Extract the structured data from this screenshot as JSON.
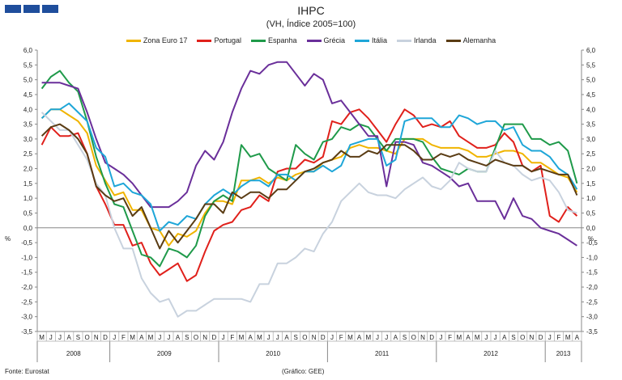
{
  "header": {
    "title": "IHPC",
    "subtitle": "(VH, Índice 2005=100)",
    "logo_icon": "gee-logo-blocks"
  },
  "footer": {
    "source": "Fonte: Eurostat",
    "credit": "(Gráfico: GEE)"
  },
  "chart_data": {
    "type": "line",
    "title": "IHPC",
    "subtitle": "(VH, Índice 2005=100)",
    "ylabel_left": "%",
    "ylabel_right": "%",
    "ylim": [
      -3.5,
      6.0
    ],
    "ytick_step": 0.5,
    "ytick_labels": [
      "6,0",
      "5,5",
      "5,0",
      "4,5",
      "4,0",
      "3,5",
      "3,0",
      "2,5",
      "2,0",
      "1,5",
      "1,0",
      "0,5",
      "0,0",
      "-0,5",
      "-1,0",
      "-1,5",
      "-2,0",
      "-2,5",
      "-3,0",
      "-3,5"
    ],
    "grid": false,
    "legend_position": "top",
    "month_labels": [
      "M",
      "J",
      "J",
      "A",
      "S",
      "O",
      "N",
      "D",
      "J",
      "F",
      "M",
      "A",
      "M",
      "J",
      "J",
      "A",
      "S",
      "O",
      "N",
      "D",
      "J",
      "F",
      "M",
      "A",
      "M",
      "J",
      "J",
      "A",
      "S",
      "O",
      "N",
      "D",
      "J",
      "F",
      "M",
      "A",
      "M",
      "J",
      "J",
      "A",
      "S",
      "O",
      "N",
      "D",
      "J",
      "F",
      "M",
      "A",
      "M",
      "J",
      "J",
      "A",
      "S",
      "O",
      "N",
      "D",
      "J",
      "F",
      "M",
      "A"
    ],
    "year_groups": [
      {
        "label": "2008",
        "start": 0,
        "count": 8
      },
      {
        "label": "2009",
        "start": 8,
        "count": 12
      },
      {
        "label": "2010",
        "start": 20,
        "count": 12
      },
      {
        "label": "2011",
        "start": 32,
        "count": 12
      },
      {
        "label": "2012",
        "start": 44,
        "count": 12
      },
      {
        "label": "2013",
        "start": 56,
        "count": 4
      }
    ],
    "series": [
      {
        "name": "Zona Euro 17",
        "color": "#f0b400",
        "values": [
          3.7,
          4.0,
          4.0,
          3.8,
          3.6,
          3.2,
          2.1,
          1.6,
          1.1,
          1.2,
          0.6,
          0.6,
          0.0,
          -0.1,
          -0.6,
          -0.2,
          -0.3,
          -0.1,
          0.5,
          0.9,
          0.9,
          0.8,
          1.6,
          1.6,
          1.7,
          1.5,
          1.7,
          1.6,
          1.8,
          1.9,
          1.9,
          2.2,
          2.3,
          2.4,
          2.7,
          2.8,
          2.7,
          2.7,
          2.6,
          2.5,
          3.0,
          3.0,
          3.0,
          2.8,
          2.7,
          2.7,
          2.7,
          2.6,
          2.4,
          2.4,
          2.5,
          2.6,
          2.6,
          2.5,
          2.2,
          2.2,
          2.0,
          1.8,
          1.7,
          1.2
        ]
      },
      {
        "name": "Portugal",
        "color": "#e0201b",
        "values": [
          2.8,
          3.4,
          3.1,
          3.1,
          3.2,
          2.5,
          1.4,
          0.8,
          0.1,
          0.1,
          -0.6,
          -0.5,
          -1.2,
          -1.6,
          -1.4,
          -1.2,
          -1.8,
          -1.6,
          -0.8,
          -0.1,
          0.1,
          0.2,
          0.6,
          0.7,
          1.1,
          0.9,
          1.9,
          2.0,
          2.0,
          2.3,
          2.2,
          2.4,
          3.6,
          3.5,
          3.9,
          4.0,
          3.7,
          3.3,
          2.9,
          3.5,
          4.0,
          3.8,
          3.4,
          3.5,
          3.4,
          3.6,
          3.1,
          2.9,
          2.7,
          2.7,
          2.8,
          3.2,
          2.9,
          2.1,
          1.9,
          2.1,
          0.4,
          0.2,
          0.7,
          0.4
        ]
      },
      {
        "name": "Espanha",
        "color": "#1f9a4a",
        "values": [
          4.7,
          5.1,
          5.3,
          4.9,
          4.6,
          3.6,
          2.4,
          1.5,
          0.8,
          0.7,
          -0.1,
          -0.9,
          -1.0,
          -1.3,
          -0.7,
          -0.8,
          -1.0,
          -0.6,
          0.4,
          0.9,
          1.1,
          0.9,
          2.8,
          2.4,
          2.5,
          2.0,
          1.8,
          1.6,
          2.8,
          2.5,
          2.3,
          2.9,
          3.0,
          3.4,
          3.3,
          3.5,
          3.4,
          3.0,
          2.6,
          3.0,
          3.0,
          3.0,
          2.9,
          2.4,
          2.0,
          1.9,
          1.8,
          2.0,
          1.9,
          1.9,
          2.7,
          3.5,
          3.5,
          3.5,
          3.0,
          3.0,
          2.8,
          2.9,
          2.6,
          1.5
        ]
      },
      {
        "name": "Grécia",
        "color": "#6a2f9a",
        "values": [
          4.9,
          4.9,
          4.9,
          4.8,
          4.7,
          3.9,
          3.0,
          2.2,
          2.0,
          1.8,
          1.5,
          1.1,
          0.7,
          0.7,
          0.7,
          0.9,
          1.2,
          2.1,
          2.6,
          2.3,
          2.9,
          3.9,
          4.7,
          5.3,
          5.2,
          5.5,
          5.6,
          5.6,
          5.2,
          4.8,
          5.2,
          5.0,
          4.2,
          4.3,
          3.9,
          3.5,
          3.1,
          3.1,
          1.4,
          2.9,
          2.9,
          2.8,
          2.2,
          2.1,
          1.9,
          1.7,
          1.4,
          1.5,
          0.9,
          0.9,
          0.9,
          0.3,
          1.0,
          0.4,
          0.3,
          -0.0,
          -0.1,
          -0.2,
          -0.4,
          -0.6
        ]
      },
      {
        "name": "Itália",
        "color": "#1ea6d8",
        "values": [
          3.7,
          4.0,
          4.0,
          4.2,
          3.9,
          3.6,
          2.7,
          2.4,
          1.4,
          1.5,
          1.2,
          1.1,
          0.8,
          -0.1,
          0.2,
          0.1,
          0.4,
          0.3,
          0.8,
          1.1,
          1.3,
          1.1,
          1.4,
          1.6,
          1.6,
          1.4,
          1.8,
          1.8,
          1.6,
          1.9,
          1.9,
          2.1,
          1.9,
          2.1,
          2.8,
          2.9,
          3.0,
          3.0,
          2.1,
          2.3,
          3.6,
          3.7,
          3.7,
          3.7,
          3.4,
          3.4,
          3.8,
          3.7,
          3.5,
          3.6,
          3.6,
          3.3,
          3.4,
          2.8,
          2.6,
          2.6,
          2.4,
          2.0,
          1.8,
          1.3
        ]
      },
      {
        "name": "Irlanda",
        "color": "#c8d2de",
        "values": [
          3.9,
          3.6,
          3.3,
          3.3,
          2.8,
          2.3,
          1.5,
          1.1,
          0.0,
          -0.7,
          -0.7,
          -1.7,
          -2.2,
          -2.5,
          -2.4,
          -3.0,
          -2.8,
          -2.8,
          -2.6,
          -2.4,
          -2.4,
          -2.4,
          -2.4,
          -2.5,
          -1.9,
          -1.9,
          -1.2,
          -1.2,
          -1.0,
          -0.7,
          -0.8,
          -0.2,
          0.2,
          0.9,
          1.2,
          1.5,
          1.2,
          1.1,
          1.1,
          1.0,
          1.3,
          1.5,
          1.7,
          1.4,
          1.3,
          1.6,
          2.2,
          2.0,
          1.9,
          1.9,
          2.6,
          2.2,
          2.1,
          1.8,
          1.6,
          1.7,
          1.6,
          1.2,
          0.6,
          0.5
        ]
      },
      {
        "name": "Alemanha",
        "color": "#5a3c14",
        "values": [
          3.1,
          3.4,
          3.5,
          3.3,
          3.0,
          2.5,
          1.4,
          1.1,
          0.9,
          1.0,
          0.4,
          0.7,
          0.0,
          -0.7,
          -0.1,
          -0.5,
          -0.1,
          0.3,
          0.8,
          0.8,
          0.5,
          1.2,
          1.0,
          1.2,
          1.2,
          1.0,
          1.3,
          1.3,
          1.6,
          1.9,
          2.0,
          2.2,
          2.3,
          2.6,
          2.4,
          2.4,
          2.6,
          2.5,
          2.8,
          2.8,
          2.8,
          2.6,
          2.3,
          2.3,
          2.5,
          2.4,
          2.5,
          2.3,
          2.2,
          2.1,
          2.3,
          2.2,
          2.1,
          2.1,
          1.9,
          2.0,
          1.9,
          1.8,
          1.8,
          1.1
        ]
      }
    ]
  }
}
